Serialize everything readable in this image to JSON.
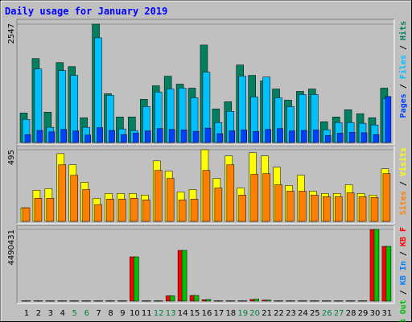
{
  "chart_data": [
    {
      "type": "bar",
      "title": "Daily usage for January 2019",
      "ylim": [
        0,
        2547
      ],
      "yticks": [
        2547
      ],
      "legend_separator": " / ",
      "series": [
        {
          "name": "Hits",
          "color": "#008060",
          "values": [
            636,
            1806,
            654,
            1720,
            1634,
            533,
            2547,
            1049,
            550,
            550,
            929,
            1221,
            1427,
            1256,
            1170,
            2098,
            722,
            877,
            1668,
            1445,
            1324,
            1152,
            912,
            1101,
            1152,
            447,
            550,
            705,
            619,
            533,
            1170
          ]
        },
        {
          "name": "Files",
          "color": "#00c0ff",
          "values": [
            499,
            1582,
            327,
            1548,
            1445,
            327,
            2253,
            1015,
            292,
            258,
            774,
            1084,
            1152,
            1170,
            963,
            1514,
            430,
            671,
            1428,
            980,
            1410,
            963,
            774,
            1032,
            1032,
            275,
            430,
            430,
            413,
            378,
            946
          ]
        },
        {
          "name": "Pages",
          "color": "#0040ff",
          "values": [
            170,
            260,
            230,
            280,
            250,
            160,
            320,
            260,
            170,
            200,
            250,
            300,
            280,
            270,
            240,
            310,
            190,
            250,
            270,
            240,
            280,
            300,
            250,
            260,
            270,
            150,
            200,
            220,
            210,
            170,
            990
          ]
        }
      ]
    },
    {
      "type": "bar",
      "ylim": [
        0,
        495
      ],
      "yticks": [
        495
      ],
      "legend_separator": " / ",
      "series": [
        {
          "name": "Visits",
          "color": "#ffff00",
          "values": [
            94,
            215,
            226,
            468,
            391,
            270,
            160,
            193,
            193,
            193,
            182,
            418,
            347,
            204,
            220,
            495,
            297,
            452,
            231,
            474,
            452,
            374,
            248,
            319,
            209,
            193,
            193,
            253,
            193,
            182,
            363
          ]
        },
        {
          "name": "Sites",
          "color": "#ff8000",
          "values": [
            94,
            160,
            160,
            391,
            319,
            220,
            116,
            154,
            154,
            160,
            149,
            352,
            297,
            149,
            154,
            352,
            231,
            391,
            182,
            325,
            330,
            253,
            209,
            209,
            182,
            171,
            171,
            198,
            171,
            165,
            330
          ]
        }
      ]
    },
    {
      "type": "bar",
      "ylim": [
        0,
        4490431
      ],
      "yticks": [
        4490431
      ],
      "legend_separator": " / ",
      "categories": [
        "1",
        "2",
        "3",
        "4",
        "5",
        "6",
        "7",
        "8",
        "9",
        "10",
        "11",
        "12",
        "13",
        "14",
        "15",
        "16",
        "17",
        "18",
        "19",
        "20",
        "21",
        "22",
        "23",
        "24",
        "25",
        "26",
        "27",
        "28",
        "29",
        "30",
        "31"
      ],
      "label_colors": [
        "#000",
        "#000",
        "#000",
        "#000",
        "#008040",
        "#008040",
        "#000",
        "#000",
        "#000",
        "#000",
        "#000",
        "#008040",
        "#008040",
        "#000",
        "#000",
        "#000",
        "#000",
        "#000",
        "#008040",
        "#008040",
        "#000",
        "#000",
        "#000",
        "#000",
        "#000",
        "#008040",
        "#008040",
        "#000",
        "#000",
        "#000",
        "#000"
      ],
      "series": [
        {
          "name": "KB F",
          "color": "#ff0000",
          "values": [
            20000,
            20000,
            20000,
            20000,
            20000,
            20000,
            20000,
            20000,
            20000,
            2775000,
            20000,
            20000,
            330000,
            3178600,
            353000,
            80000,
            20000,
            20000,
            20000,
            100000,
            60000,
            20000,
            20000,
            20000,
            20000,
            20000,
            20000,
            20000,
            20000,
            4490431,
            3430900
          ]
        },
        {
          "name": "KB In",
          "color": "#0080ff",
          "values": [
            null,
            null,
            null,
            null,
            null,
            null,
            null,
            null,
            null,
            null,
            null,
            null,
            null,
            null,
            null,
            null,
            null,
            null,
            null,
            null,
            null,
            null,
            null,
            null,
            null,
            null,
            null,
            null,
            null,
            null,
            null
          ]
        },
        {
          "name": "KB Out",
          "color": "#00c000",
          "values": [
            20000,
            20000,
            20000,
            20000,
            20000,
            20000,
            20000,
            20000,
            20000,
            2775000,
            20000,
            20000,
            330000,
            3178600,
            353000,
            100000,
            20000,
            20000,
            20000,
            120000,
            60000,
            20000,
            20000,
            20000,
            20000,
            20000,
            20000,
            20000,
            20000,
            4490431,
            3430900
          ]
        }
      ]
    }
  ]
}
